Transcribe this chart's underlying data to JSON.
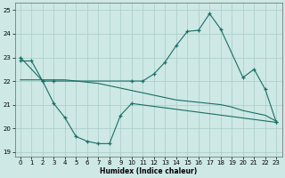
{
  "xlabel": "Humidex (Indice chaleur)",
  "background_color": "#cde8e5",
  "grid_color": "#a8ccc9",
  "line_color": "#1a6e65",
  "xlim": [
    -0.5,
    23.5
  ],
  "ylim": [
    18.8,
    25.3
  ],
  "yticks": [
    19,
    20,
    21,
    22,
    23,
    24,
    25
  ],
  "xticks": [
    0,
    1,
    2,
    3,
    4,
    5,
    6,
    7,
    8,
    9,
    10,
    11,
    12,
    13,
    14,
    15,
    16,
    17,
    18,
    19,
    20,
    21,
    22,
    23
  ],
  "line1_x": [
    0,
    2,
    3,
    10,
    11,
    12,
    13,
    14,
    15,
    16,
    17,
    18,
    20,
    21,
    22,
    23
  ],
  "line1_y": [
    23.0,
    22.0,
    22.0,
    22.0,
    22.0,
    22.3,
    22.8,
    23.5,
    24.1,
    24.15,
    24.85,
    24.2,
    22.15,
    22.5,
    21.65,
    20.25
  ],
  "line2_x": [
    0,
    1,
    2,
    3,
    4,
    5,
    6,
    7,
    8,
    9,
    10,
    23
  ],
  "line2_y": [
    22.85,
    22.85,
    22.0,
    21.05,
    20.45,
    19.65,
    19.45,
    19.35,
    19.35,
    20.55,
    21.05,
    20.25
  ],
  "line3_x": [
    0,
    1,
    2,
    3,
    4,
    5,
    6,
    7,
    8,
    9,
    10,
    11,
    12,
    13,
    14,
    15,
    16,
    17,
    18,
    19,
    20,
    21,
    22,
    23
  ],
  "line3_y": [
    22.05,
    22.05,
    22.05,
    22.05,
    22.05,
    22.0,
    21.95,
    21.9,
    21.8,
    21.7,
    21.6,
    21.5,
    21.4,
    21.3,
    21.2,
    21.15,
    21.1,
    21.05,
    21.0,
    20.9,
    20.75,
    20.65,
    20.55,
    20.3
  ]
}
